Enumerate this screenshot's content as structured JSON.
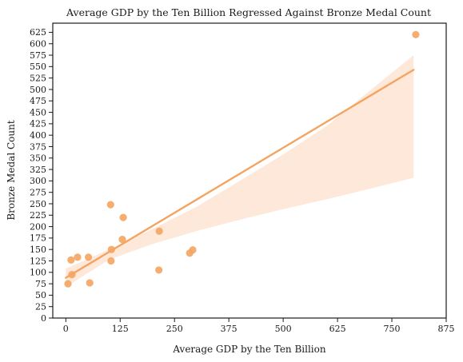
{
  "chart_data": {
    "type": "scatter",
    "title": "Average GDP by the Ten Billion Regressed Against Bronze Medal Count",
    "xlabel": "Average GDP by the Ten Billion",
    "ylabel": "Bronze Medal Count",
    "xlim": [
      -30,
      875
    ],
    "ylim": [
      0,
      645
    ],
    "x_ticks": [
      0,
      125,
      250,
      375,
      500,
      625,
      750,
      875
    ],
    "y_ticks": [
      0,
      25,
      50,
      75,
      100,
      125,
      150,
      175,
      200,
      225,
      250,
      275,
      300,
      325,
      350,
      375,
      400,
      425,
      450,
      475,
      500,
      525,
      550,
      575,
      600,
      625
    ],
    "points": [
      {
        "x": 5,
        "y": 75
      },
      {
        "x": 12,
        "y": 127
      },
      {
        "x": 14,
        "y": 95
      },
      {
        "x": 27,
        "y": 133
      },
      {
        "x": 52,
        "y": 133
      },
      {
        "x": 55,
        "y": 77
      },
      {
        "x": 103,
        "y": 248
      },
      {
        "x": 104,
        "y": 125
      },
      {
        "x": 105,
        "y": 150
      },
      {
        "x": 130,
        "y": 172
      },
      {
        "x": 132,
        "y": 220
      },
      {
        "x": 214,
        "y": 105
      },
      {
        "x": 215,
        "y": 190
      },
      {
        "x": 285,
        "y": 142
      },
      {
        "x": 292,
        "y": 149
      },
      {
        "x": 805,
        "y": 620
      }
    ],
    "regression": {
      "x": [
        0,
        800
      ],
      "y": [
        88,
        543
      ],
      "ci_x": [
        0,
        100,
        200,
        300,
        400,
        500,
        600,
        700,
        800
      ],
      "ci_lower": [
        68,
        128,
        162,
        190,
        215,
        238,
        260,
        283,
        307
      ],
      "ci_upper": [
        108,
        150,
        195,
        243,
        300,
        358,
        420,
        498,
        575
      ]
    },
    "colors": {
      "points": "#f4a460",
      "line": "#f4a460",
      "ci_band": "#fde8da"
    },
    "grid": false,
    "legend": "none"
  }
}
